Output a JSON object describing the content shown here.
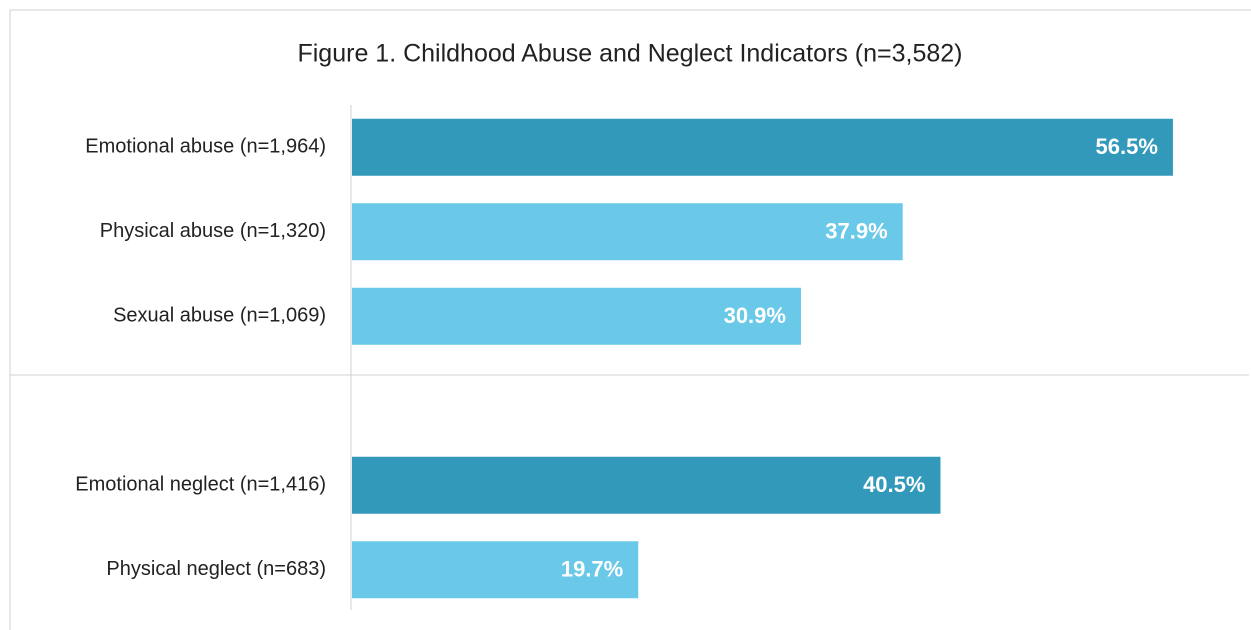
{
  "chart_data": {
    "type": "barh",
    "title": "Figure 1. Childhood Abuse and Neglect Indicators (n=3,582)",
    "categories": [
      "Emotional abuse (n=1,964)",
      "Physical abuse (n=1,320)",
      "Sexual abuse (n=1,069)",
      null,
      "Emotional neglect (n=1,416)",
      "Physical neglect (n=683)"
    ],
    "values": [
      56.5,
      37.9,
      30.9,
      null,
      40.5,
      19.7
    ],
    "value_labels": [
      "56.5%",
      "37.9%",
      "30.9%",
      null,
      "40.5%",
      "19.7%"
    ],
    "colors": [
      "#3399bb",
      "#6ac8e8",
      "#6ac8e8",
      null,
      "#3399bb",
      "#6ac8e8"
    ]
  }
}
